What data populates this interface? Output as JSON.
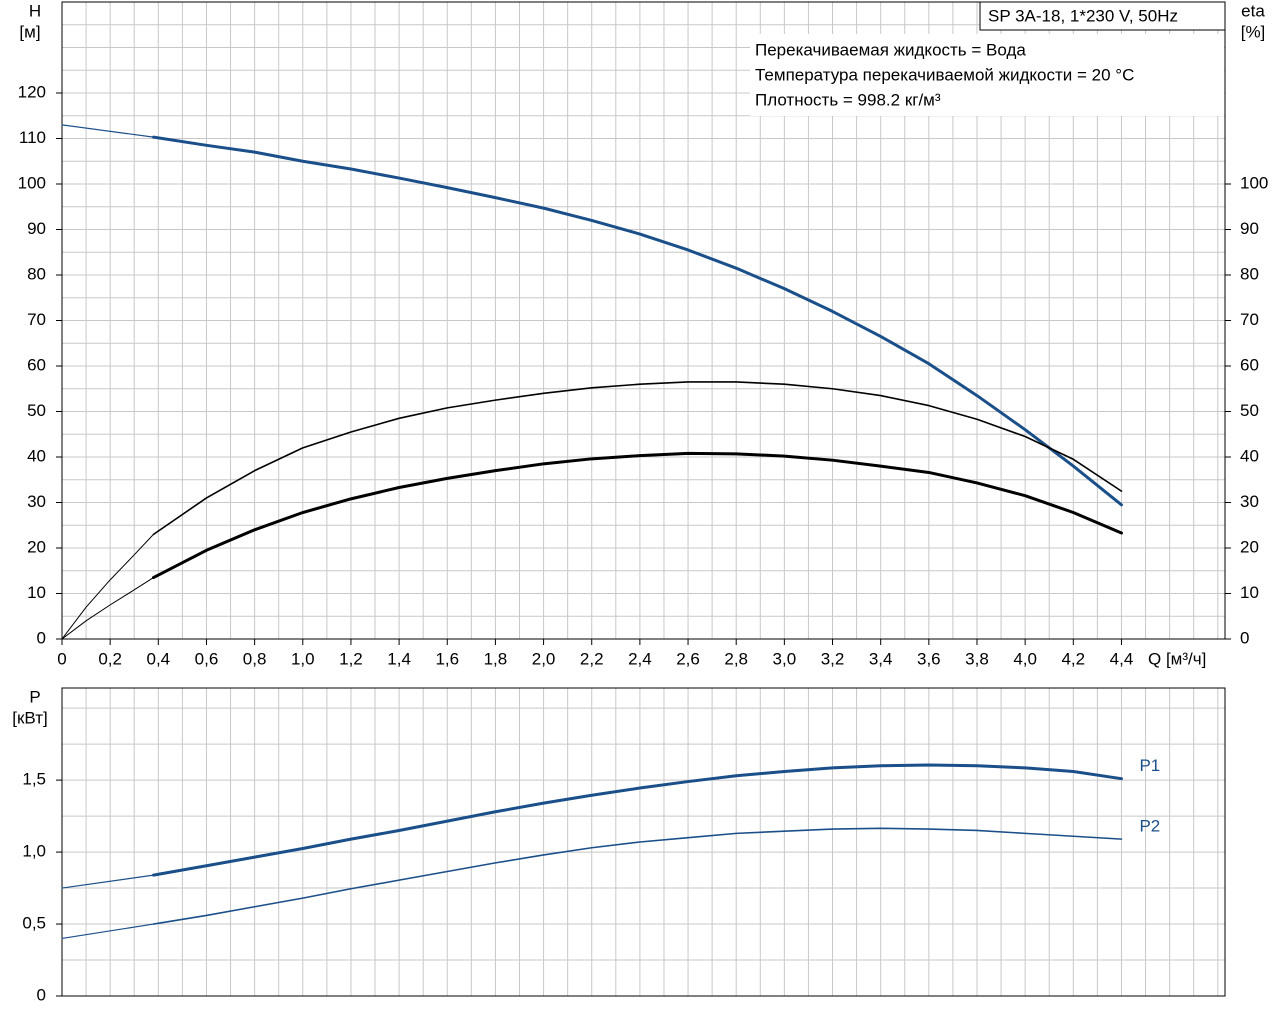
{
  "chart_data": [
    {
      "type": "line",
      "title": "SP 3A-18, 1*230 V, 50Hz",
      "annotations": [
        "Перекачиваемая жидкость = Вода",
        "Температура перекачиваемой жидкости = 20 °C",
        "Плотность = 998.2 кг/м³"
      ],
      "ylabel": "H",
      "yunit": "[м]",
      "y2label": "eta",
      "y2unit": "[%]",
      "xlabel": "Q [м³/ч]",
      "xlim": [
        0,
        4.83
      ],
      "ylim": [
        0,
        140
      ],
      "y2lim": [
        0,
        140
      ],
      "xticks": [
        0,
        {
          "value": 0.2,
          "label": "0,2"
        },
        {
          "value": 0.4,
          "label": "0,4"
        },
        {
          "value": 0.6,
          "label": "0,6"
        },
        {
          "value": 0.8,
          "label": "0,8"
        },
        {
          "value": 1.0,
          "label": "1,0"
        },
        {
          "value": 1.2,
          "label": "1,2"
        },
        {
          "value": 1.4,
          "label": "1,4"
        },
        {
          "value": 1.6,
          "label": "1,6"
        },
        {
          "value": 1.8,
          "label": "1,8"
        },
        {
          "value": 2.0,
          "label": "2,0"
        },
        {
          "value": 2.2,
          "label": "2,2"
        },
        {
          "value": 2.4,
          "label": "2,4"
        },
        {
          "value": 2.6,
          "label": "2,6"
        },
        {
          "value": 2.8,
          "label": "2,8"
        },
        {
          "value": 3.0,
          "label": "3,0"
        },
        {
          "value": 3.2,
          "label": "3,2"
        },
        {
          "value": 3.4,
          "label": "3,4"
        },
        {
          "value": 3.6,
          "label": "3,6"
        },
        {
          "value": 3.8,
          "label": "3,8"
        },
        {
          "value": 4.0,
          "label": "4,0"
        },
        {
          "value": 4.2,
          "label": "4,2"
        },
        {
          "value": 4.4,
          "label": "4,4"
        }
      ],
      "yticks": [
        0,
        10,
        20,
        30,
        40,
        50,
        60,
        70,
        80,
        90,
        100,
        110,
        120
      ],
      "y2ticks": [
        0,
        10,
        20,
        30,
        40,
        50,
        60,
        70,
        80,
        90,
        100
      ],
      "xgrid": [
        0.1,
        0.2,
        0.3,
        0.4,
        0.5,
        0.6,
        0.7,
        0.8,
        0.9,
        1.0,
        1.1,
        1.2,
        1.3,
        1.4,
        1.5,
        1.6,
        1.7,
        1.8,
        1.9,
        2.0,
        2.1,
        2.2,
        2.3,
        2.4,
        2.5,
        2.6,
        2.7,
        2.8,
        2.9,
        3.0,
        3.1,
        3.2,
        3.3,
        3.4,
        3.5,
        3.6,
        3.7,
        3.8,
        3.9,
        4.0,
        4.1,
        4.2,
        4.3,
        4.4,
        4.5,
        4.6,
        4.7,
        4.8
      ],
      "ygrid": [
        5,
        10,
        15,
        20,
        25,
        30,
        35,
        40,
        45,
        50,
        55,
        60,
        65,
        70,
        75,
        80,
        85,
        90,
        95,
        100,
        105,
        110,
        115,
        120,
        125,
        130,
        135
      ],
      "series": [
        {
          "color": "#1b4f8a",
          "width": 1.2,
          "x": [
            0,
            0.38
          ],
          "values": [
            113,
            110.3
          ]
        },
        {
          "color": "#1b4f8a",
          "width": 3,
          "x": [
            0.38,
            0.6,
            0.8,
            1.0,
            1.2,
            1.4,
            1.6,
            1.8,
            2.0,
            2.2,
            2.4,
            2.6,
            2.8,
            3.0,
            3.2,
            3.4,
            3.6,
            3.8,
            4.0,
            4.2,
            4.4
          ],
          "values": [
            110.3,
            108.5,
            107,
            105,
            103.3,
            101.3,
            99.2,
            97,
            94.7,
            92,
            89,
            85.5,
            81.5,
            77,
            72,
            66.5,
            60.5,
            53.5,
            46,
            38,
            29.5
          ]
        },
        {
          "color": "#000000",
          "width": 1,
          "axis": "y2",
          "x": [
            0,
            0.1,
            0.2,
            0.3,
            0.38
          ],
          "values": [
            0,
            7,
            13,
            18.5,
            23
          ]
        },
        {
          "color": "#000000",
          "width": 1.6,
          "axis": "y2",
          "x": [
            0.38,
            0.6,
            0.8,
            1.0,
            1.2,
            1.4,
            1.6,
            1.8,
            2.0,
            2.2,
            2.4,
            2.6,
            2.8,
            3.0,
            3.2,
            3.4,
            3.6,
            3.8,
            4.0,
            4.2,
            4.4
          ],
          "values": [
            23,
            31,
            37,
            42,
            45.5,
            48.5,
            50.8,
            52.5,
            54,
            55.2,
            56,
            56.5,
            56.5,
            56,
            55,
            53.5,
            51.3,
            48.3,
            44.5,
            39.5,
            32.5
          ]
        },
        {
          "color": "#000000",
          "width": 1,
          "axis": "y2",
          "x": [
            0,
            0.1,
            0.2,
            0.3,
            0.38
          ],
          "values": [
            0,
            4,
            7.5,
            10.8,
            13.5
          ]
        },
        {
          "color": "#000000",
          "width": 3,
          "axis": "y2",
          "x": [
            0.38,
            0.6,
            0.8,
            1.0,
            1.2,
            1.4,
            1.6,
            1.8,
            2.0,
            2.2,
            2.4,
            2.6,
            2.8,
            3.0,
            3.2,
            3.4,
            3.6,
            3.8,
            4.0,
            4.2,
            4.4
          ],
          "values": [
            13.5,
            19.5,
            24,
            27.8,
            30.8,
            33.3,
            35.3,
            37,
            38.5,
            39.6,
            40.3,
            40.8,
            40.7,
            40.2,
            39.3,
            38,
            36.6,
            34.3,
            31.5,
            27.8,
            23.3
          ]
        }
      ]
    },
    {
      "type": "line",
      "ylabel": "P",
      "yunit": "[кВт]",
      "xlim": [
        0,
        4.83
      ],
      "ylim": [
        0,
        2.14
      ],
      "yticks": [
        0,
        {
          "value": 0.5,
          "label": "0,5"
        },
        {
          "value": 1.0,
          "label": "1,0"
        },
        {
          "value": 1.5,
          "label": "1,5"
        }
      ],
      "xgrid": [
        0.1,
        0.2,
        0.3,
        0.4,
        0.5,
        0.6,
        0.7,
        0.8,
        0.9,
        1.0,
        1.1,
        1.2,
        1.3,
        1.4,
        1.5,
        1.6,
        1.7,
        1.8,
        1.9,
        2.0,
        2.1,
        2.2,
        2.3,
        2.4,
        2.5,
        2.6,
        2.7,
        2.8,
        2.9,
        3.0,
        3.1,
        3.2,
        3.3,
        3.4,
        3.5,
        3.6,
        3.7,
        3.8,
        3.9,
        4.0,
        4.1,
        4.2,
        4.3,
        4.4,
        4.5,
        4.6,
        4.7,
        4.8
      ],
      "ygrid": [
        0.25,
        0.5,
        0.75,
        1.0,
        1.25,
        1.5,
        1.75,
        2.0
      ],
      "series": [
        {
          "color": "#1b4f8a",
          "width": 1.2,
          "x": [
            0,
            0.38
          ],
          "values": [
            0.75,
            0.84
          ]
        },
        {
          "name": "P1",
          "color": "#1b4f8a",
          "width": 3,
          "x": [
            0.38,
            0.6,
            0.8,
            1.0,
            1.2,
            1.4,
            1.6,
            1.8,
            2.0,
            2.2,
            2.4,
            2.6,
            2.8,
            3.0,
            3.2,
            3.4,
            3.6,
            3.8,
            4.0,
            4.2,
            4.4
          ],
          "values": [
            0.84,
            0.905,
            0.965,
            1.025,
            1.09,
            1.15,
            1.215,
            1.28,
            1.34,
            1.395,
            1.445,
            1.49,
            1.53,
            1.56,
            1.585,
            1.6,
            1.605,
            1.6,
            1.585,
            1.56,
            1.51
          ]
        },
        {
          "color": "#1b4f8a",
          "width": 1.2,
          "x": [
            0,
            0.38
          ],
          "values": [
            0.4,
            0.5
          ]
        },
        {
          "name": "P2",
          "color": "#1b4f8a",
          "width": 1.6,
          "x": [
            0.38,
            0.6,
            0.8,
            1.0,
            1.2,
            1.4,
            1.6,
            1.8,
            2.0,
            2.2,
            2.4,
            2.6,
            2.8,
            3.0,
            3.2,
            3.4,
            3.6,
            3.8,
            4.0,
            4.2,
            4.4
          ],
          "values": [
            0.5,
            0.56,
            0.62,
            0.68,
            0.745,
            0.805,
            0.865,
            0.925,
            0.98,
            1.03,
            1.07,
            1.1,
            1.13,
            1.145,
            1.16,
            1.165,
            1.16,
            1.15,
            1.13,
            1.11,
            1.09
          ]
        }
      ]
    }
  ]
}
